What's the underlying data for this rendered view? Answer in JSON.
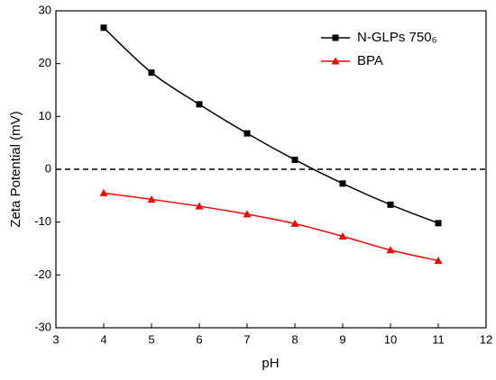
{
  "chart_data": {
    "type": "line",
    "x_label": "pH",
    "y_label": "Zeta Potential (mV)",
    "x": [
      4,
      5,
      6,
      7,
      8,
      9,
      10,
      11
    ],
    "series": [
      {
        "name": "N-GLPs 750₆",
        "color": "#000000",
        "marker": "square",
        "values": [
          26.8,
          18.3,
          12.3,
          6.8,
          1.8,
          -2.7,
          -6.7,
          -10.2
        ]
      },
      {
        "name": "BPA",
        "color": "#ff0000",
        "marker": "triangle",
        "values": [
          -4.5,
          -5.7,
          -7.0,
          -8.5,
          -10.3,
          -12.7,
          -15.3,
          -17.3
        ]
      }
    ],
    "hline": 0,
    "xlim": [
      3,
      12
    ],
    "xticks": [
      3,
      4,
      5,
      6,
      7,
      8,
      9,
      10,
      11,
      12
    ],
    "ylim": [
      -30,
      30
    ],
    "yticks": [
      -30,
      -20,
      -10,
      0,
      10,
      20,
      30
    ],
    "legend": "upper right",
    "grid": false
  }
}
